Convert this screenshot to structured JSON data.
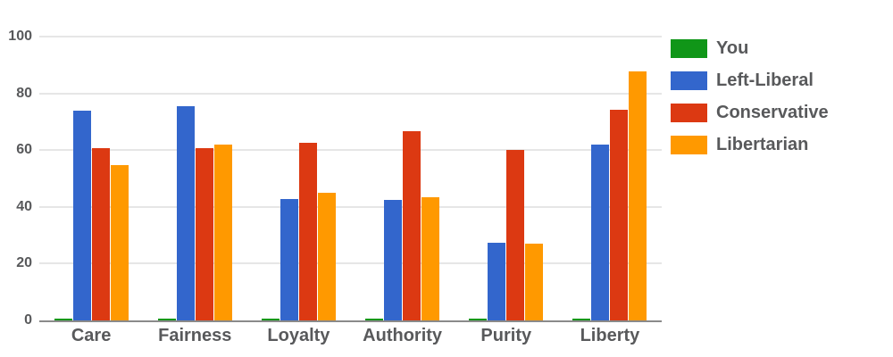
{
  "chart_data": {
    "type": "bar",
    "categories": [
      "Care",
      "Fairness",
      "Loyalty",
      "Authority",
      "Purity",
      "Liberty"
    ],
    "series": [
      {
        "name": "You",
        "color": "#109618",
        "values": [
          0.5,
          0.5,
          0.5,
          0.5,
          0.5,
          0.5
        ]
      },
      {
        "name": "Left-Liberal",
        "color": "#3366CC",
        "values": [
          73.9,
          75.4,
          42.8,
          42.4,
          27.4,
          61.9
        ]
      },
      {
        "name": "Conservative",
        "color": "#DC3912",
        "values": [
          60.6,
          60.7,
          62.5,
          66.6,
          60.0,
          74.2
        ]
      },
      {
        "name": "Libertarian",
        "color": "#FF9900",
        "values": [
          54.8,
          61.9,
          45.0,
          43.4,
          26.9,
          87.6
        ]
      }
    ],
    "yticks": [
      0,
      20,
      40,
      60,
      80,
      100
    ],
    "ylim": [
      0,
      100
    ],
    "grid": true,
    "legend_position": "right"
  },
  "style_colors": {
    "axis_line": "#8a8a8a",
    "gridline": "#e6e6e6",
    "label_text": "#58595b",
    "background": "#ffffff"
  }
}
